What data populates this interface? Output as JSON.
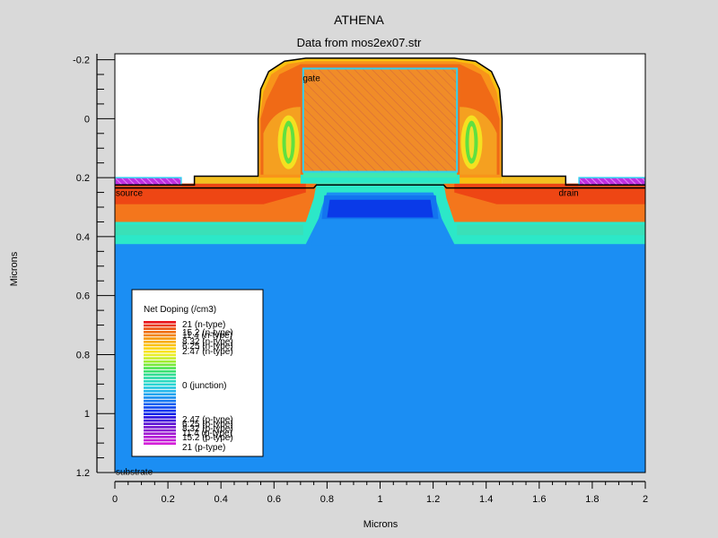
{
  "chart_data": {
    "type": "heatmap",
    "title": "ATHENA",
    "subtitle": "Data from mos2ex07.str",
    "xlabel": "Microns",
    "ylabel": "Microns",
    "xlim": [
      0,
      2
    ],
    "ylim": [
      -0.22,
      1.2
    ],
    "y_inverted": true,
    "x_ticks": [
      "0",
      "0.2",
      "0.4",
      "0.6",
      "0.8",
      "1",
      "1.2",
      "1.4",
      "1.6",
      "1.8",
      "2"
    ],
    "x_tick_values": [
      0,
      0.2,
      0.4,
      0.6,
      0.8,
      1,
      1.2,
      1.4,
      1.6,
      1.8,
      2
    ],
    "y_ticks": [
      "-0.2",
      "0",
      "0.2",
      "0.4",
      "0.6",
      "0.8",
      "1",
      "1.2"
    ],
    "y_tick_values": [
      -0.2,
      0,
      0.2,
      0.4,
      0.6,
      0.8,
      1,
      1.2
    ],
    "region_labels": [
      "gate",
      "source",
      "drain",
      "substrate"
    ],
    "legend": {
      "title": "Net Doping (/cm3)",
      "entries": [
        "21 (n-type)",
        "15.2 (n-type)",
        "11.4 (n-type)",
        "8.32 (n-type)",
        "6.25 (n-type)",
        "2.47 (n-type)",
        "0 (junction)",
        "2.47 (p-type)",
        "6.25 (p-type)",
        "8.32 (p-type)",
        "11.4 (p-type)",
        "15.2 (p-type)",
        "21 (p-type)"
      ],
      "colors": [
        "#e8141c",
        "#ea3a18",
        "#ec5514",
        "#ef6e12",
        "#f28410",
        "#f5990e",
        "#f8ae0e",
        "#fac110",
        "#fbd414",
        "#f9e420",
        "#e9ee28",
        "#c8ee2c",
        "#a0ec30",
        "#78e83a",
        "#50e450",
        "#38e070",
        "#30dc90",
        "#2cdaa8",
        "#2ad8c0",
        "#28d4d2",
        "#26c8e0",
        "#22b6ea",
        "#1ea4ee",
        "#1890f0",
        "#1478f0",
        "#1060f0",
        "#0c48f0",
        "#0834ee",
        "#0e22e8",
        "#2a10e0",
        "#4410d8",
        "#5c12d4",
        "#7414d0",
        "#8a18d0",
        "#a01ad2",
        "#b21cd6",
        "#c41ed8",
        "#d420d8"
      ]
    },
    "region_colors": {
      "substrate": "#1b8ef3",
      "channel_core": "#0a3ae8",
      "channel_outer": "#1374ef",
      "junction": "#2ce8c8",
      "source_drain": "#ee4614",
      "source_drain_deep": "#f4761c",
      "gate_poly": "#f08c28",
      "oxide_band": "#f4c020",
      "metal_contact": "#c030e0"
    }
  }
}
